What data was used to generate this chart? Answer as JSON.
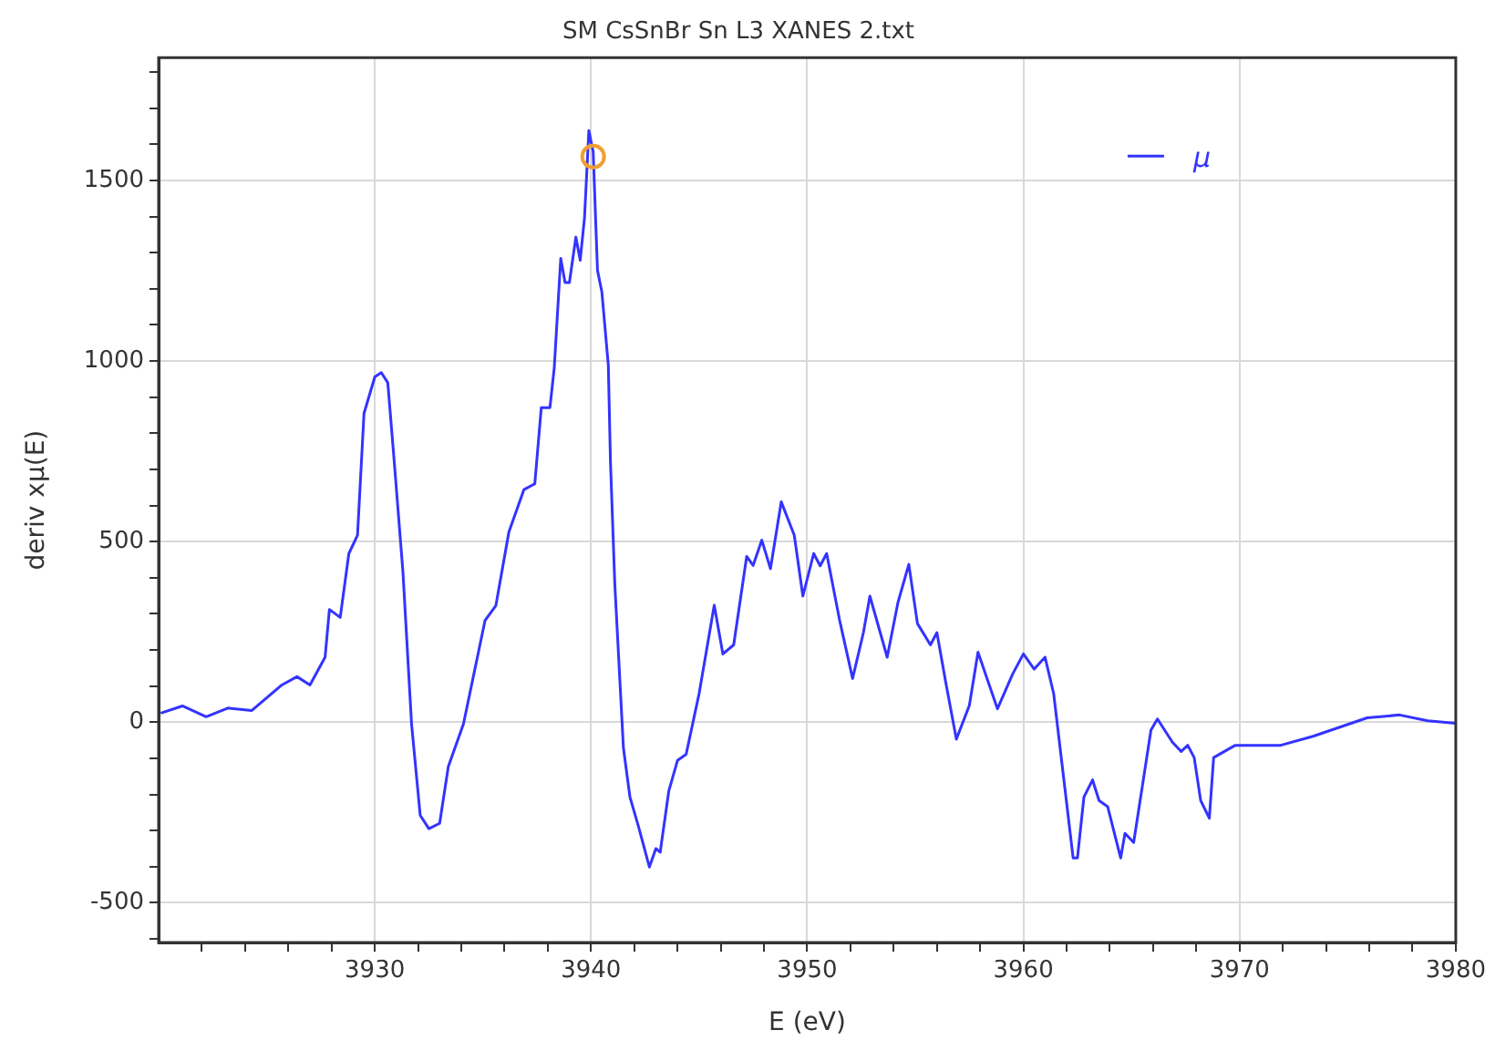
{
  "chart_data": {
    "type": "line",
    "title": "SM CsSnBr Sn L3 XANES 2.txt",
    "xlabel": "E (eV)",
    "ylabel": "deriv xμ(E)",
    "xlim": [
      3920,
      3980
    ],
    "ylim": [
      -610,
      1840
    ],
    "xticks": [
      {
        "value": 3922,
        "label": null
      },
      {
        "value": 3924,
        "label": null
      },
      {
        "value": 3926,
        "label": null
      },
      {
        "value": 3928,
        "label": null
      },
      3930,
      {
        "value": 3932,
        "label": null
      },
      {
        "value": 3934,
        "label": null
      },
      {
        "value": 3936,
        "label": null
      },
      {
        "value": 3938,
        "label": null
      },
      3940,
      {
        "value": 3942,
        "label": null
      },
      {
        "value": 3944,
        "label": null
      },
      {
        "value": 3946,
        "label": null
      },
      {
        "value": 3948,
        "label": null
      },
      3950,
      {
        "value": 3952,
        "label": null
      },
      {
        "value": 3954,
        "label": null
      },
      {
        "value": 3956,
        "label": null
      },
      {
        "value": 3958,
        "label": null
      },
      3960,
      {
        "value": 3962,
        "label": null
      },
      {
        "value": 3964,
        "label": null
      },
      {
        "value": 3966,
        "label": null
      },
      {
        "value": 3968,
        "label": null
      },
      3970,
      {
        "value": 3972,
        "label": null
      },
      {
        "value": 3974,
        "label": null
      },
      {
        "value": 3976,
        "label": null
      },
      {
        "value": 3978,
        "label": null
      },
      3980
    ],
    "yticks": [
      {
        "value": -600,
        "label": null
      },
      -500,
      {
        "value": -400,
        "label": null
      },
      {
        "value": -300,
        "label": null
      },
      {
        "value": -200,
        "label": null
      },
      {
        "value": -100,
        "label": null
      },
      0,
      {
        "value": 100,
        "label": null
      },
      {
        "value": 200,
        "label": null
      },
      {
        "value": 300,
        "label": null
      },
      {
        "value": 400,
        "label": null
      },
      500,
      {
        "value": 600,
        "label": null
      },
      {
        "value": 700,
        "label": null
      },
      {
        "value": 800,
        "label": null
      },
      {
        "value": 900,
        "label": null
      },
      1000,
      {
        "value": 1100,
        "label": null
      },
      {
        "value": 1200,
        "label": null
      },
      {
        "value": 1300,
        "label": null
      },
      {
        "value": 1400,
        "label": null
      },
      1500,
      {
        "value": 1600,
        "label": null
      },
      {
        "value": 1700,
        "label": null
      },
      {
        "value": 1800,
        "label": null
      }
    ],
    "grid": true,
    "legend": "top right",
    "marker": "none",
    "line_style": "solid",
    "series": [
      {
        "name": "μ",
        "color": "#3333ff",
        "x": [
          3920.1,
          3921.1,
          3922.2,
          3923.2,
          3924.3,
          3925.7,
          3926.4,
          3927.0,
          3927.7,
          3927.9,
          3928.4,
          3928.8,
          3929.2,
          3929.5,
          3930.0,
          3930.3,
          3930.6,
          3930.9,
          3931.3,
          3931.7,
          3932.1,
          3932.5,
          3933.0,
          3933.4,
          3934.1,
          3935.1,
          3935.6,
          3936.2,
          3936.9,
          3937.4,
          3937.7,
          3938.1,
          3938.3,
          3938.6,
          3938.8,
          3939.0,
          3939.3,
          3939.5,
          3939.7,
          3939.9,
          3940.1,
          3940.3,
          3940.5,
          3940.8,
          3940.9,
          3941.1,
          3941.5,
          3941.8,
          3942.2,
          3942.7,
          3943.0,
          3943.2,
          3943.6,
          3944.0,
          3944.4,
          3945.0,
          3945.7,
          3946.1,
          3946.6,
          3947.2,
          3947.5,
          3947.9,
          3948.3,
          3948.8,
          3949.4,
          3949.8,
          3950.3,
          3950.6,
          3950.9,
          3951.5,
          3952.1,
          3952.6,
          3952.9,
          3953.7,
          3954.2,
          3954.7,
          3955.1,
          3955.7,
          3956.0,
          3956.4,
          3956.9,
          3957.5,
          3957.9,
          3958.8,
          3959.5,
          3960.0,
          3960.5,
          3961.0,
          3961.4,
          3962.0,
          3962.3,
          3962.5,
          3962.8,
          3963.2,
          3963.5,
          3963.9,
          3964.5,
          3964.7,
          3965.1,
          3965.4,
          3965.9,
          3966.2,
          3966.9,
          3967.3,
          3967.6,
          3967.9,
          3968.2,
          3968.6,
          3968.8,
          3969.8,
          3971.9,
          3973.4,
          3975.9,
          3977.4,
          3978.7,
          3980.0
        ],
        "values": [
          25,
          45,
          15,
          39,
          32,
          103,
          126,
          103,
          180,
          312,
          290,
          467,
          518,
          855,
          956,
          968,
          940,
          720,
          417,
          -5,
          -258,
          -295,
          -280,
          -123,
          -5,
          282,
          323,
          526,
          644,
          660,
          871,
          871,
          981,
          1284,
          1217,
          1217,
          1343,
          1279,
          1397,
          1638,
          1579,
          1251,
          1192,
          989,
          721,
          383,
          -72,
          -207,
          -290,
          -401,
          -350,
          -360,
          -190,
          -106,
          -89,
          79,
          324,
          189,
          214,
          459,
          434,
          504,
          425,
          610,
          518,
          349,
          467,
          433,
          467,
          282,
          121,
          248,
          349,
          180,
          332,
          437,
          273,
          214,
          248,
          113,
          -47,
          46,
          194,
          37,
          133,
          189,
          147,
          180,
          79,
          -224,
          -376,
          -376,
          -207,
          -160,
          -217,
          -234,
          -376,
          -308,
          -333,
          -217,
          -22,
          9,
          -56,
          -81,
          -64,
          -98,
          -217,
          -266,
          -98,
          -64,
          -64,
          -39,
          12,
          20,
          4,
          -3
        ]
      },
      {
        "type": "scatter",
        "color": "#f0a030",
        "marker": "circle",
        "x": [
          3940.1
        ],
        "values": [
          1566
        ]
      }
    ]
  }
}
